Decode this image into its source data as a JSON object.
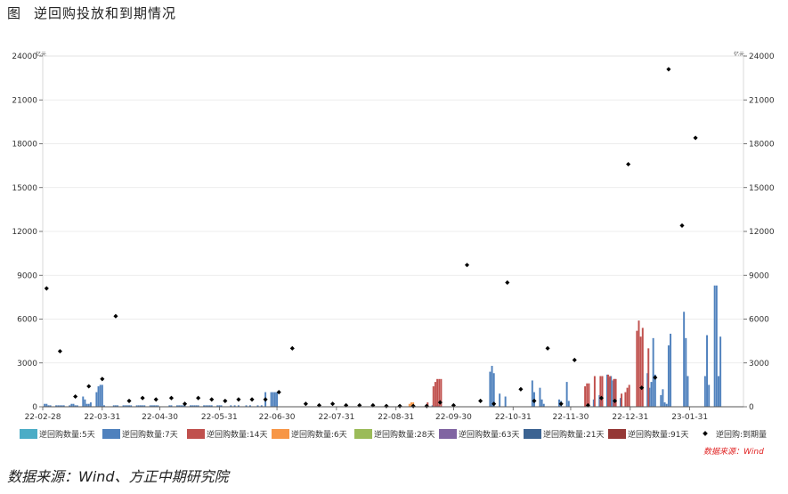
{
  "figure": {
    "label": "图",
    "title": "逆回购投放和到期情况",
    "left_unit": "亿元",
    "right_unit": "亿元",
    "inner_source": "数据来源：Wind",
    "source": "数据来源：Wind、方正中期研究院"
  },
  "colors": {
    "r5": "#4bacc6",
    "r7": "#4f81bd",
    "r14": "#c0504d",
    "r6": "#f79646",
    "r28": "#9bbb59",
    "r63": "#8064a2",
    "r21": "#3b6392",
    "r91": "#953735",
    "maturity": "#000000",
    "source_red": "#e02020"
  },
  "chart_data": {
    "type": "bar",
    "title": "逆回购投放和到期情况",
    "ylim": [
      0,
      24000
    ],
    "y_ticks": [
      0,
      3000,
      6000,
      9000,
      12000,
      15000,
      18000,
      21000,
      24000
    ],
    "x_range": [
      "2022-02-28",
      "2023-02-28"
    ],
    "x_tick_labels": [
      "22-02-28",
      "22-03-31",
      "22-04-30",
      "22-05-31",
      "22-06-30",
      "22-07-31",
      "22-08-31",
      "22-09-30",
      "22-10-31",
      "22-11-30",
      "22-12-31",
      "23-01-31"
    ],
    "legend": [
      "逆回购数量:5天",
      "逆回购数量:7天",
      "逆回购数量:14天",
      "逆回购数量:6天",
      "逆回购数量:28天",
      "逆回购数量:63天",
      "逆回购数量:21天",
      "逆回购数量:91天",
      "逆回购:到期量"
    ],
    "legend_position": "bottom",
    "series": [
      {
        "name": "逆回购数量:7天",
        "type": "bar",
        "points": [
          [
            "2022-03-01",
            200
          ],
          [
            "2022-03-02",
            200
          ],
          [
            "2022-03-03",
            100
          ],
          [
            "2022-03-04",
            100
          ],
          [
            "2022-03-07",
            100
          ],
          [
            "2022-03-08",
            100
          ],
          [
            "2022-03-09",
            100
          ],
          [
            "2022-03-10",
            100
          ],
          [
            "2022-03-11",
            100
          ],
          [
            "2022-03-14",
            100
          ],
          [
            "2022-03-15",
            200
          ],
          [
            "2022-03-16",
            200
          ],
          [
            "2022-03-17",
            100
          ],
          [
            "2022-03-18",
            100
          ],
          [
            "2022-03-21",
            700
          ],
          [
            "2022-03-22",
            500
          ],
          [
            "2022-03-23",
            200
          ],
          [
            "2022-03-24",
            200
          ],
          [
            "2022-03-25",
            300
          ],
          [
            "2022-03-28",
            1000
          ],
          [
            "2022-03-29",
            1400
          ],
          [
            "2022-03-30",
            1500
          ],
          [
            "2022-03-31",
            1500
          ],
          [
            "2022-04-01",
            100
          ],
          [
            "2022-04-06",
            100
          ],
          [
            "2022-04-07",
            100
          ],
          [
            "2022-04-08",
            100
          ],
          [
            "2022-04-11",
            100
          ],
          [
            "2022-04-12",
            100
          ],
          [
            "2022-04-13",
            100
          ],
          [
            "2022-04-14",
            100
          ],
          [
            "2022-04-15",
            100
          ],
          [
            "2022-04-18",
            100
          ],
          [
            "2022-04-19",
            100
          ],
          [
            "2022-04-20",
            100
          ],
          [
            "2022-04-21",
            100
          ],
          [
            "2022-04-22",
            100
          ],
          [
            "2022-04-25",
            100
          ],
          [
            "2022-04-26",
            100
          ],
          [
            "2022-04-27",
            100
          ],
          [
            "2022-04-28",
            100
          ],
          [
            "2022-04-29",
            100
          ],
          [
            "2022-05-05",
            100
          ],
          [
            "2022-05-06",
            100
          ],
          [
            "2022-05-09",
            100
          ],
          [
            "2022-05-10",
            100
          ],
          [
            "2022-05-11",
            100
          ],
          [
            "2022-05-12",
            100
          ],
          [
            "2022-05-13",
            100
          ],
          [
            "2022-05-16",
            100
          ],
          [
            "2022-05-17",
            100
          ],
          [
            "2022-05-18",
            100
          ],
          [
            "2022-05-19",
            100
          ],
          [
            "2022-05-20",
            100
          ],
          [
            "2022-05-23",
            100
          ],
          [
            "2022-05-24",
            100
          ],
          [
            "2022-05-25",
            100
          ],
          [
            "2022-05-26",
            100
          ],
          [
            "2022-05-27",
            100
          ],
          [
            "2022-05-30",
            100
          ],
          [
            "2022-05-31",
            100
          ],
          [
            "2022-06-01",
            100
          ],
          [
            "2022-06-06",
            100
          ],
          [
            "2022-06-08",
            100
          ],
          [
            "2022-06-10",
            100
          ],
          [
            "2022-06-14",
            100
          ],
          [
            "2022-06-16",
            100
          ],
          [
            "2022-06-20",
            100
          ],
          [
            "2022-06-22",
            100
          ],
          [
            "2022-06-24",
            1000
          ],
          [
            "2022-06-27",
            1000
          ],
          [
            "2022-06-28",
            1000
          ],
          [
            "2022-06-29",
            1000
          ],
          [
            "2022-06-30",
            1000
          ],
          [
            "2022-07-01",
            30
          ],
          [
            "2022-07-04",
            30
          ],
          [
            "2022-07-05",
            30
          ],
          [
            "2022-07-06",
            30
          ],
          [
            "2022-07-08",
            30
          ],
          [
            "2022-07-11",
            30
          ],
          [
            "2022-07-13",
            30
          ],
          [
            "2022-07-15",
            30
          ],
          [
            "2022-07-18",
            30
          ],
          [
            "2022-07-20",
            30
          ],
          [
            "2022-07-22",
            30
          ],
          [
            "2022-07-25",
            30
          ],
          [
            "2022-07-27",
            30
          ],
          [
            "2022-07-29",
            30
          ],
          [
            "2022-08-01",
            20
          ],
          [
            "2022-08-03",
            20
          ],
          [
            "2022-08-05",
            20
          ],
          [
            "2022-08-08",
            20
          ],
          [
            "2022-08-10",
            20
          ],
          [
            "2022-08-12",
            20
          ],
          [
            "2022-08-15",
            20
          ],
          [
            "2022-08-17",
            20
          ],
          [
            "2022-08-19",
            20
          ],
          [
            "2022-08-22",
            20
          ],
          [
            "2022-08-24",
            20
          ],
          [
            "2022-08-26",
            20
          ],
          [
            "2022-08-29",
            20
          ],
          [
            "2022-08-31",
            20
          ],
          [
            "2022-09-16",
            100
          ],
          [
            "2022-09-19",
            100
          ],
          [
            "2022-09-21",
            100
          ],
          [
            "2022-09-22",
            100
          ],
          [
            "2022-10-19",
            2400
          ],
          [
            "2022-10-20",
            2800
          ],
          [
            "2022-10-21",
            2300
          ],
          [
            "2022-10-24",
            900
          ],
          [
            "2022-10-27",
            700
          ],
          [
            "2022-11-10",
            1800
          ],
          [
            "2022-11-11",
            1000
          ],
          [
            "2022-11-14",
            1300
          ],
          [
            "2022-11-15",
            500
          ],
          [
            "2022-11-16",
            200
          ],
          [
            "2022-11-24",
            500
          ],
          [
            "2022-11-25",
            400
          ],
          [
            "2022-11-28",
            1700
          ],
          [
            "2022-11-29",
            400
          ],
          [
            "2022-12-12",
            500
          ],
          [
            "2022-12-15",
            800
          ],
          [
            "2022-12-16",
            600
          ],
          [
            "2022-12-19",
            2200
          ],
          [
            "2022-12-20",
            2000
          ],
          [
            "2022-12-21",
            2100
          ],
          [
            "2022-12-22",
            1800
          ],
          [
            "2022-12-23",
            1900
          ],
          [
            "2022-12-26",
            600
          ],
          [
            "2023-01-09",
            2300
          ],
          [
            "2023-01-10",
            1300
          ],
          [
            "2023-01-11",
            1700
          ],
          [
            "2023-01-12",
            4700
          ],
          [
            "2023-01-13",
            2200
          ],
          [
            "2023-01-16",
            800
          ],
          [
            "2023-01-17",
            1200
          ],
          [
            "2023-01-18",
            300
          ],
          [
            "2023-01-19",
            200
          ],
          [
            "2023-01-20",
            4200
          ],
          [
            "2023-01-21",
            5000
          ],
          [
            "2023-01-28",
            6500
          ],
          [
            "2023-01-29",
            4700
          ],
          [
            "2023-01-30",
            2100
          ],
          [
            "2023-02-08",
            2100
          ],
          [
            "2023-02-09",
            4900
          ],
          [
            "2023-02-10",
            1500
          ],
          [
            "2023-02-13",
            8300
          ],
          [
            "2023-02-14",
            8300
          ],
          [
            "2023-02-15",
            2100
          ],
          [
            "2023-02-16",
            4800
          ]
        ]
      },
      {
        "name": "逆回购数量:14天",
        "type": "bar",
        "points": [
          [
            "2022-09-16",
            300
          ],
          [
            "2022-09-19",
            1400
          ],
          [
            "2022-09-20",
            1700
          ],
          [
            "2022-09-21",
            1900
          ],
          [
            "2022-09-22",
            1900
          ],
          [
            "2022-09-23",
            1900
          ],
          [
            "2022-12-07",
            1400
          ],
          [
            "2022-12-08",
            1600
          ],
          [
            "2022-12-09",
            1600
          ],
          [
            "2022-12-12",
            2100
          ],
          [
            "2022-12-15",
            2100
          ],
          [
            "2022-12-16",
            2100
          ],
          [
            "2022-12-19",
            2200
          ],
          [
            "2022-12-20",
            2100
          ],
          [
            "2022-12-22",
            1900
          ],
          [
            "2022-12-23",
            1900
          ],
          [
            "2022-12-26",
            900
          ],
          [
            "2022-12-28",
            1000
          ],
          [
            "2022-12-29",
            1300
          ],
          [
            "2022-12-30",
            1500
          ],
          [
            "2023-01-03",
            5200
          ],
          [
            "2023-01-04",
            5900
          ],
          [
            "2023-01-05",
            4800
          ],
          [
            "2023-01-06",
            5400
          ],
          [
            "2023-01-09",
            4000
          ]
        ]
      },
      {
        "name": "逆回购数量:6天",
        "type": "bar",
        "points": [
          [
            "2022-09-07",
            200
          ],
          [
            "2022-09-08",
            300
          ],
          [
            "2022-09-09",
            300
          ]
        ]
      },
      {
        "name": "逆回购:到期量",
        "type": "scatter",
        "points": [
          [
            "2022-03-02",
            8100
          ],
          [
            "2022-03-09",
            3800
          ],
          [
            "2022-03-17",
            700
          ],
          [
            "2022-03-24",
            1400
          ],
          [
            "2022-03-31",
            1900
          ],
          [
            "2022-04-07",
            6200
          ],
          [
            "2022-04-14",
            400
          ],
          [
            "2022-04-21",
            600
          ],
          [
            "2022-04-28",
            500
          ],
          [
            "2022-05-06",
            600
          ],
          [
            "2022-05-13",
            200
          ],
          [
            "2022-05-20",
            600
          ],
          [
            "2022-05-27",
            500
          ],
          [
            "2022-06-03",
            400
          ],
          [
            "2022-06-10",
            500
          ],
          [
            "2022-06-17",
            500
          ],
          [
            "2022-06-24",
            500
          ],
          [
            "2022-07-01",
            1000
          ],
          [
            "2022-07-08",
            4000
          ],
          [
            "2022-07-15",
            200
          ],
          [
            "2022-07-22",
            100
          ],
          [
            "2022-07-29",
            200
          ],
          [
            "2022-08-05",
            100
          ],
          [
            "2022-08-12",
            100
          ],
          [
            "2022-08-19",
            100
          ],
          [
            "2022-08-26",
            50
          ],
          [
            "2022-09-02",
            50
          ],
          [
            "2022-09-09",
            50
          ],
          [
            "2022-09-16",
            50
          ],
          [
            "2022-09-23",
            300
          ],
          [
            "2022-09-30",
            100
          ],
          [
            "2022-10-07",
            9700
          ],
          [
            "2022-10-14",
            400
          ],
          [
            "2022-10-21",
            200
          ],
          [
            "2022-10-28",
            8500
          ],
          [
            "2022-11-04",
            1200
          ],
          [
            "2022-11-11",
            400
          ],
          [
            "2022-11-18",
            4000
          ],
          [
            "2022-11-25",
            200
          ],
          [
            "2022-12-02",
            3200
          ],
          [
            "2022-12-09",
            100
          ],
          [
            "2022-12-16",
            600
          ],
          [
            "2022-12-23",
            400
          ],
          [
            "2022-12-30",
            16600
          ],
          [
            "2023-01-06",
            1300
          ],
          [
            "2023-01-13",
            2000
          ],
          [
            "2023-01-20",
            23100
          ],
          [
            "2023-01-27",
            12400
          ],
          [
            "2023-02-03",
            18400
          ]
        ]
      }
    ]
  }
}
